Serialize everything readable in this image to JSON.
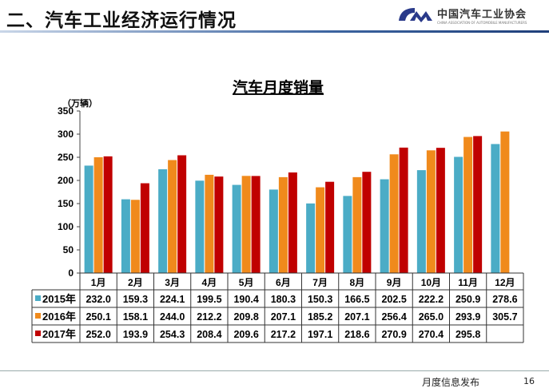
{
  "header": {
    "title": "二、汽车工业经济运行情况"
  },
  "logo": {
    "name_cn": "中国汽车工业协会",
    "name_en": "CHINA ASSOCIATION OF AUTOMOBILE MANUFACTURERS"
  },
  "footer": {
    "text": "月度信息发布",
    "page": "16"
  },
  "chart_data": {
    "type": "bar",
    "title": "汽车月度销量",
    "ylabel": "（万辆）",
    "ylim": [
      0,
      350
    ],
    "yticks": [
      0,
      50,
      100,
      150,
      200,
      250,
      300,
      350
    ],
    "categories": [
      "1月",
      "2月",
      "3月",
      "4月",
      "5月",
      "6月",
      "7月",
      "8月",
      "9月",
      "10月",
      "11月",
      "12月"
    ],
    "series": [
      {
        "name": "2015年",
        "color": "#4bacc6",
        "values": [
          232.0,
          159.3,
          224.1,
          199.5,
          190.4,
          180.3,
          150.3,
          166.5,
          202.5,
          222.2,
          250.9,
          278.6
        ]
      },
      {
        "name": "2016年",
        "color": "#f08a1c",
        "values": [
          250.1,
          158.1,
          244.0,
          212.2,
          209.8,
          207.1,
          185.2,
          207.1,
          256.4,
          265.0,
          293.9,
          305.7
        ]
      },
      {
        "name": "2017年",
        "color": "#c00000",
        "values": [
          252.0,
          193.9,
          254.3,
          208.4,
          209.6,
          217.2,
          197.1,
          218.6,
          270.9,
          270.4,
          295.8,
          null
        ]
      }
    ],
    "legend": "data-table",
    "grid": false
  }
}
